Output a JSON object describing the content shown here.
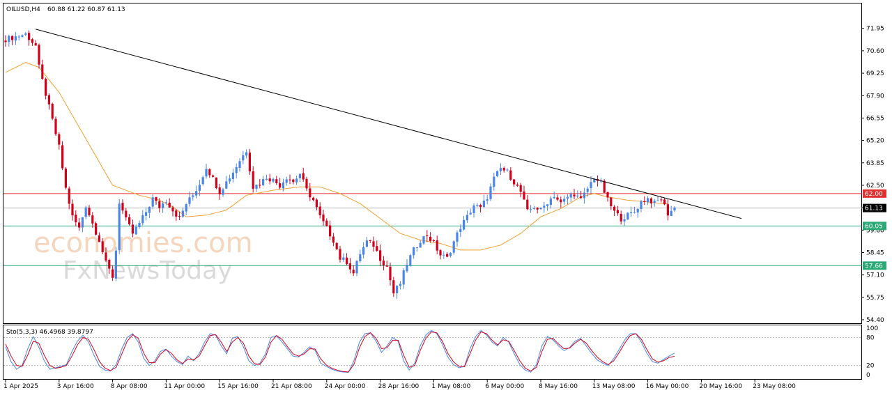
{
  "header": {
    "symbol": "OILUSD,H4",
    "ohlc": "60.88 61.22 60.87 61.13"
  },
  "watermark": {
    "brand": "economies.com",
    "sub": "FxNewsToday"
  },
  "colors": {
    "bull": "#4a86e8",
    "bear": "#d0021b",
    "ma": "#f0a030",
    "trendline": "#000000",
    "resistance": "#e03030",
    "support": "#2aa876",
    "stoch_main": "#4a86e8",
    "stoch_signal": "#d0021b"
  },
  "chart_data": [
    {
      "type": "candlestick",
      "title": "OILUSD,H4",
      "ylim": [
        54.4,
        72.4
      ],
      "y_ticks": [
        "71.95",
        "70.60",
        "69.25",
        "67.90",
        "66.55",
        "65.20",
        "63.85",
        "62.50",
        "61.15",
        "59.80",
        "58.45",
        "57.10",
        "55.75",
        "54.40"
      ],
      "x_ticks": [
        "1 Apr 2025",
        "3 Apr 16:00",
        "8 Apr 08:00",
        "11 Apr 00:00",
        "15 Apr 16:00",
        "21 Apr 08:00",
        "24 Apr 00:00",
        "28 Apr 16:00",
        "1 May 08:00",
        "6 May 00:00",
        "8 May 16:00",
        "13 May 08:00",
        "16 May 00:00",
        "20 May 16:00",
        "23 May 08:00"
      ],
      "bars_per_tick": 16,
      "close_path": [
        [
          0,
          71.3
        ],
        [
          6,
          71.6
        ],
        [
          9,
          70.9
        ],
        [
          10,
          69.6
        ],
        [
          12,
          68.0
        ],
        [
          14,
          66.4
        ],
        [
          16,
          64.8
        ],
        [
          18,
          62.3
        ],
        [
          20,
          60.6
        ],
        [
          22,
          59.9
        ],
        [
          24,
          61.3
        ],
        [
          26,
          60.2
        ],
        [
          28,
          59.2
        ],
        [
          30,
          57.8
        ],
        [
          32,
          57.0
        ],
        [
          33,
          58.6
        ],
        [
          34,
          61.5
        ],
        [
          36,
          60.4
        ],
        [
          38,
          59.6
        ],
        [
          40,
          60.2
        ],
        [
          42,
          60.9
        ],
        [
          44,
          61.7
        ],
        [
          46,
          61.2
        ],
        [
          48,
          61.6
        ],
        [
          50,
          61.0
        ],
        [
          52,
          60.5
        ],
        [
          54,
          61.4
        ],
        [
          56,
          61.9
        ],
        [
          58,
          62.6
        ],
        [
          60,
          63.6
        ],
        [
          62,
          62.9
        ],
        [
          64,
          62.1
        ],
        [
          66,
          62.7
        ],
        [
          68,
          63.3
        ],
        [
          70,
          64.0
        ],
        [
          72,
          64.6
        ],
        [
          74,
          62.4
        ],
        [
          76,
          62.6
        ],
        [
          78,
          63.0
        ],
        [
          80,
          62.8
        ],
        [
          82,
          62.5
        ],
        [
          84,
          63.0
        ],
        [
          86,
          62.7
        ],
        [
          88,
          63.2
        ],
        [
          90,
          62.2
        ],
        [
          92,
          61.6
        ],
        [
          94,
          60.6
        ],
        [
          96,
          59.9
        ],
        [
          98,
          59.2
        ],
        [
          100,
          58.1
        ],
        [
          102,
          57.9
        ],
        [
          104,
          57.2
        ],
        [
          106,
          58.4
        ],
        [
          108,
          59.1
        ],
        [
          110,
          58.9
        ],
        [
          112,
          58.1
        ],
        [
          114,
          57.6
        ],
        [
          116,
          56.0
        ],
        [
          118,
          56.6
        ],
        [
          120,
          57.8
        ],
        [
          122,
          58.6
        ],
        [
          124,
          59.2
        ],
        [
          126,
          59.5
        ],
        [
          128,
          59.0
        ],
        [
          130,
          58.3
        ],
        [
          132,
          58.1
        ],
        [
          134,
          59.1
        ],
        [
          136,
          60.0
        ],
        [
          138,
          60.6
        ],
        [
          140,
          61.3
        ],
        [
          142,
          61.1
        ],
        [
          144,
          61.8
        ],
        [
          146,
          62.9
        ],
        [
          148,
          63.5
        ],
        [
          150,
          63.3
        ],
        [
          152,
          62.7
        ],
        [
          154,
          62.1
        ],
        [
          156,
          60.9
        ],
        [
          158,
          61.2
        ],
        [
          160,
          61.0
        ],
        [
          162,
          61.5
        ],
        [
          164,
          61.9
        ],
        [
          166,
          61.4
        ],
        [
          168,
          61.8
        ],
        [
          170,
          62.0
        ],
        [
          172,
          61.6
        ],
        [
          174,
          62.3
        ],
        [
          176,
          63.0
        ],
        [
          178,
          62.6
        ],
        [
          180,
          61.6
        ],
        [
          182,
          60.9
        ],
        [
          184,
          60.5
        ],
        [
          186,
          60.7
        ],
        [
          188,
          60.9
        ],
        [
          190,
          61.5
        ],
        [
          192,
          61.7
        ],
        [
          194,
          61.4
        ],
        [
          196,
          61.7
        ],
        [
          198,
          60.8
        ],
        [
          200,
          61.13
        ]
      ],
      "moving_average": [
        [
          0,
          69.3
        ],
        [
          6,
          69.9
        ],
        [
          10,
          69.6
        ],
        [
          16,
          68.1
        ],
        [
          24,
          65.3
        ],
        [
          32,
          62.5
        ],
        [
          40,
          61.9
        ],
        [
          46,
          61.6
        ],
        [
          50,
          61.2
        ],
        [
          54,
          60.6
        ],
        [
          60,
          60.7
        ],
        [
          66,
          61.0
        ],
        [
          72,
          61.9
        ],
        [
          80,
          62.2
        ],
        [
          88,
          62.4
        ],
        [
          94,
          62.4
        ],
        [
          100,
          62.0
        ],
        [
          106,
          61.4
        ],
        [
          112,
          60.5
        ],
        [
          118,
          59.6
        ],
        [
          124,
          59.2
        ],
        [
          130,
          59.0
        ],
        [
          136,
          58.6
        ],
        [
          142,
          58.6
        ],
        [
          148,
          58.9
        ],
        [
          154,
          59.6
        ],
        [
          160,
          60.6
        ],
        [
          166,
          61.1
        ],
        [
          172,
          61.8
        ],
        [
          176,
          62.0
        ],
        [
          180,
          61.8
        ],
        [
          186,
          61.6
        ],
        [
          192,
          61.5
        ],
        [
          196,
          61.4
        ],
        [
          198,
          61.4
        ]
      ],
      "trendline": {
        "from": [
          9,
          71.9
        ],
        "to": [
          220,
          60.5
        ]
      },
      "levels": [
        {
          "label": "62.00",
          "value": 62.0,
          "kind": "resistance"
        },
        {
          "label": "61.13",
          "value": 61.13,
          "kind": "current"
        },
        {
          "label": "60.05",
          "value": 60.05,
          "kind": "support"
        },
        {
          "label": "57.66",
          "value": 57.66,
          "kind": "support"
        }
      ]
    },
    {
      "type": "line",
      "title": "Sto(5,3,3) 46.4968 39.8797",
      "ylim": [
        0,
        100
      ],
      "y_ticks": [
        "100",
        "80",
        "20",
        "0"
      ],
      "levels": [
        80,
        20
      ],
      "series": [
        {
          "values": [
            60,
            28,
            12,
            20,
            55,
            82,
            60,
            30,
            12,
            15,
            18,
            22,
            50,
            72,
            85,
            70,
            42,
            18,
            10,
            8,
            22,
            55,
            80,
            88,
            70,
            35,
            20,
            30,
            50,
            55,
            40,
            28,
            22,
            40,
            30,
            45,
            70,
            88,
            85,
            62,
            45,
            78,
            82,
            60,
            30,
            20,
            25,
            45,
            80,
            84,
            70,
            55,
            40,
            38,
            48,
            60,
            52,
            25,
            18,
            12,
            8,
            6,
            5,
            30,
            70,
            88,
            90,
            72,
            48,
            62,
            80,
            72,
            30,
            10,
            25,
            62,
            85,
            95,
            88,
            65,
            38,
            22,
            15,
            18,
            55,
            82,
            95,
            85,
            70,
            62,
            80,
            70,
            45,
            22,
            10,
            6,
            22,
            62,
            82,
            75,
            62,
            52,
            58,
            72,
            78,
            62,
            46,
            32,
            25,
            20,
            35,
            55,
            75,
            88,
            88,
            70,
            46,
            28,
            25,
            33,
            40,
            46.5
          ]
        },
        {
          "values": [
            66,
            40,
            20,
            18,
            42,
            72,
            68,
            42,
            20,
            14,
            16,
            20,
            40,
            64,
            80,
            76,
            54,
            28,
            14,
            9,
            16,
            44,
            72,
            86,
            78,
            46,
            26,
            26,
            44,
            54,
            46,
            32,
            24,
            34,
            32,
            40,
            62,
            84,
            86,
            70,
            50,
            70,
            80,
            68,
            40,
            24,
            22,
            38,
            70,
            84,
            76,
            60,
            45,
            40,
            45,
            56,
            55,
            34,
            21,
            14,
            10,
            7,
            6,
            22,
            58,
            82,
            90,
            78,
            56,
            58,
            74,
            74,
            42,
            16,
            20,
            52,
            78,
            92,
            90,
            72,
            46,
            28,
            18,
            17,
            45,
            74,
            92,
            88,
            74,
            64,
            75,
            72,
            52,
            30,
            14,
            8,
            16,
            50,
            76,
            78,
            66,
            56,
            57,
            68,
            76,
            68,
            52,
            38,
            28,
            22,
            30,
            48,
            68,
            84,
            88,
            76,
            54,
            34,
            27,
            30,
            37,
            39.9
          ]
        }
      ]
    }
  ]
}
